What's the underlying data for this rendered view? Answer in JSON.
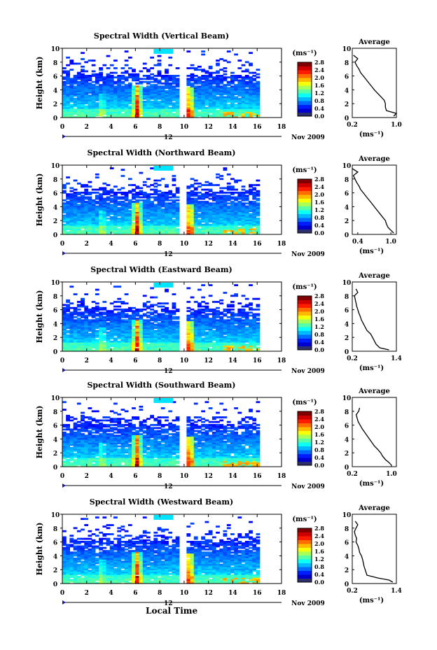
{
  "figure": {
    "xlabel": "Local Time",
    "date_label": "Nov 2009",
    "day_label": "12",
    "colorbar_unit": "(ms⁻¹)",
    "profile_title": "Average",
    "profile_xlabel": "(ms⁻¹)"
  },
  "chart_data": [
    {
      "type": "heatmap",
      "title": "Spectral Width (Vertical Beam)",
      "ylabel": "Height (km)",
      "xlim": [
        0,
        18
      ],
      "ylim": [
        0,
        10
      ],
      "xticks": [
        "0",
        "2",
        "4",
        "6",
        "8",
        "10",
        "12",
        "14",
        "16",
        "18"
      ],
      "yticks": [
        "0",
        "2",
        "4",
        "6",
        "8",
        "10"
      ],
      "data_gap": [
        9.5,
        10.0
      ],
      "data_end": 16.0,
      "colorbar": {
        "ticks": [
          "0.0",
          "0.4",
          "0.8",
          "1.2",
          "1.6",
          "2.0",
          "2.4",
          "2.8"
        ],
        "range": [
          0,
          2.8
        ]
      },
      "profile": {
        "title": "Average",
        "xticks": [
          "0.2",
          "1.0"
        ],
        "xlim": [
          0.2,
          1.0
        ],
        "heights": [
          0.2,
          0.6,
          1.0,
          1.5,
          2.0,
          2.5,
          3.0,
          3.5,
          4.0,
          4.5,
          5.0,
          5.5,
          6.0,
          6.5,
          7.0,
          7.5,
          8.0,
          8.5,
          9.0
        ],
        "values": [
          0.95,
          1.0,
          0.82,
          0.8,
          0.8,
          0.78,
          0.72,
          0.66,
          0.6,
          0.55,
          0.5,
          0.45,
          0.4,
          0.35,
          0.32,
          0.28,
          0.25,
          0.3,
          0.22
        ]
      }
    },
    {
      "type": "heatmap",
      "title": "Spectral Width (Northward Beam)",
      "ylabel": "Height (km)",
      "xlim": [
        0,
        18
      ],
      "ylim": [
        0,
        10
      ],
      "xticks": [
        "0",
        "2",
        "4",
        "6",
        "8",
        "10",
        "12",
        "14",
        "16",
        "18"
      ],
      "yticks": [
        "0",
        "2",
        "4",
        "6",
        "8",
        "10"
      ],
      "data_gap": [
        9.5,
        10.0
      ],
      "data_end": 16.0,
      "colorbar": {
        "ticks": [
          "0.0",
          "0.4",
          "0.8",
          "1.2",
          "1.6",
          "2.0",
          "2.4",
          "2.8"
        ],
        "range": [
          0,
          2.8
        ]
      },
      "profile": {
        "title": "Average",
        "xticks": [
          "0.4",
          "1.0"
        ],
        "xlim": [
          0.3,
          1.1
        ],
        "heights": [
          0.2,
          0.6,
          1.0,
          1.5,
          2.0,
          2.5,
          3.0,
          3.5,
          4.0,
          4.5,
          5.0,
          5.5,
          6.0,
          6.5,
          7.0,
          7.5,
          8.0,
          8.5,
          9.0,
          9.5
        ],
        "values": [
          1.05,
          1.0,
          0.95,
          0.92,
          0.9,
          0.85,
          0.8,
          0.75,
          0.7,
          0.65,
          0.6,
          0.55,
          0.5,
          0.45,
          0.42,
          0.38,
          0.35,
          0.32,
          0.4,
          0.3
        ]
      }
    },
    {
      "type": "heatmap",
      "title": "Spectral Width (Eastward Beam)",
      "ylabel": "Height (km)",
      "xlim": [
        0,
        18
      ],
      "ylim": [
        0,
        10
      ],
      "xticks": [
        "0",
        "2",
        "4",
        "6",
        "8",
        "10",
        "12",
        "14",
        "16",
        "18"
      ],
      "yticks": [
        "0",
        "2",
        "4",
        "6",
        "8",
        "10"
      ],
      "data_gap": [
        9.5,
        10.0
      ],
      "data_end": 16.0,
      "colorbar": {
        "ticks": [
          "0.0",
          "0.4",
          "0.8",
          "1.2",
          "1.6",
          "2.0",
          "2.4",
          "2.8"
        ],
        "range": [
          0,
          2.8
        ]
      },
      "profile": {
        "title": "Average",
        "xticks": [
          "0.2",
          "1.4"
        ],
        "xlim": [
          0.2,
          1.4
        ],
        "heights": [
          0.2,
          0.5,
          1.0,
          1.5,
          2.0,
          2.5,
          3.0,
          3.5,
          4.0,
          4.5,
          5.0,
          5.5,
          6.0,
          6.5,
          7.0,
          7.5,
          8.0,
          8.5,
          9.0
        ],
        "values": [
          1.2,
          0.95,
          0.85,
          0.8,
          0.75,
          0.7,
          0.6,
          0.55,
          0.5,
          0.45,
          0.42,
          0.38,
          0.35,
          0.32,
          0.3,
          0.28,
          0.26,
          0.35,
          0.3
        ]
      }
    },
    {
      "type": "heatmap",
      "title": "Spectral Width (Southward Beam)",
      "ylabel": "Height (km)",
      "xlim": [
        0,
        18
      ],
      "ylim": [
        0,
        10
      ],
      "xticks": [
        "0",
        "2",
        "4",
        "6",
        "8",
        "10",
        "12",
        "14",
        "16",
        "18"
      ],
      "yticks": [
        "0",
        "2",
        "4",
        "6",
        "8",
        "10"
      ],
      "data_gap": [
        9.5,
        10.0
      ],
      "data_end": 16.0,
      "colorbar": {
        "ticks": [
          "0.0",
          "0.4",
          "0.8",
          "1.2",
          "1.6",
          "2.0",
          "2.4",
          "2.8"
        ],
        "range": [
          0,
          2.8
        ]
      },
      "profile": {
        "title": "Average",
        "xticks": [
          "0.2",
          "1.0"
        ],
        "xlim": [
          0.2,
          1.1
        ],
        "heights": [
          0.2,
          0.6,
          1.0,
          1.5,
          2.0,
          2.5,
          3.0,
          3.5,
          4.0,
          4.5,
          5.0,
          5.5,
          6.0,
          6.5,
          7.0,
          7.5,
          8.0,
          8.5
        ],
        "values": [
          1.0,
          0.95,
          0.88,
          0.82,
          0.78,
          0.72,
          0.65,
          0.6,
          0.55,
          0.5,
          0.45,
          0.4,
          0.36,
          0.32,
          0.3,
          0.28,
          0.33,
          0.35
        ]
      }
    },
    {
      "type": "heatmap",
      "title": "Spectral Width (Westward Beam)",
      "ylabel": "Height (km)",
      "xlim": [
        0,
        18
      ],
      "ylim": [
        0,
        10
      ],
      "xticks": [
        "0",
        "2",
        "4",
        "6",
        "8",
        "10",
        "12",
        "14",
        "16",
        "18"
      ],
      "yticks": [
        "0",
        "2",
        "4",
        "6",
        "8",
        "10"
      ],
      "data_gap": [
        9.5,
        10.0
      ],
      "data_end": 16.0,
      "colorbar": {
        "ticks": [
          "0.0",
          "0.4",
          "0.8",
          "1.2",
          "1.6",
          "2.0",
          "2.4",
          "2.8"
        ],
        "range": [
          0,
          2.8
        ]
      },
      "profile": {
        "title": "Average",
        "xticks": [
          "0.2",
          "1.4"
        ],
        "xlim": [
          0.2,
          1.4
        ],
        "heights": [
          0.2,
          0.5,
          0.8,
          1.2,
          2.0,
          2.5,
          3.0,
          3.5,
          4.0,
          4.5,
          5.0,
          5.5,
          6.0,
          6.5,
          7.0,
          7.5,
          8.0,
          8.5,
          9.0
        ],
        "values": [
          1.3,
          1.2,
          0.9,
          0.6,
          0.55,
          0.52,
          0.5,
          0.48,
          0.45,
          0.4,
          0.38,
          0.35,
          0.3,
          0.32,
          0.28,
          0.26,
          0.3,
          0.35,
          0.28
        ]
      }
    }
  ]
}
